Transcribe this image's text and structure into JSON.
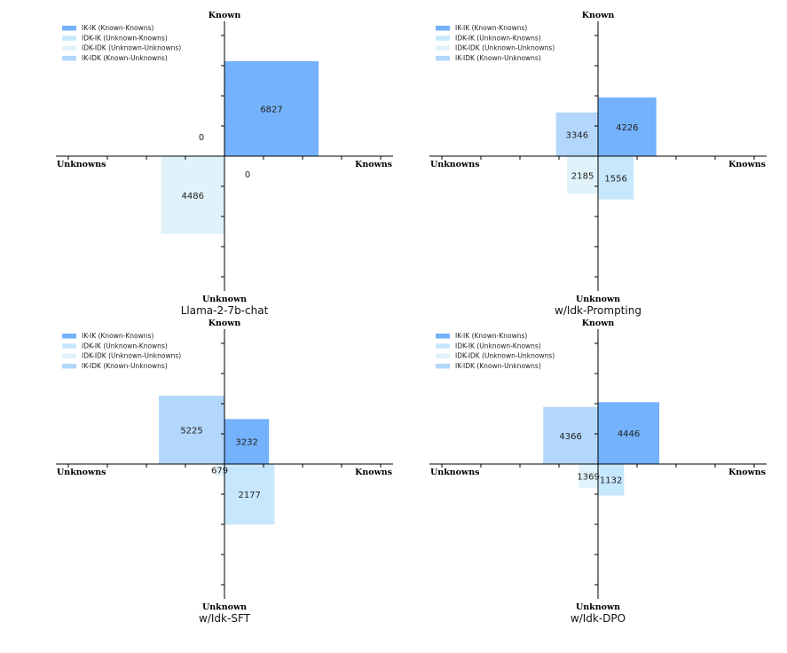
{
  "colors": {
    "ik_ik": "#74b2fb",
    "idk_ik": "#c7e7fc",
    "idk_idk": "#e1f3fa",
    "ik_idk": "#b2d6fc",
    "axis": "#000000"
  },
  "legend": [
    {
      "key": "ik_ik",
      "label": "IK-IK (Known-Knowns)"
    },
    {
      "key": "idk_ik",
      "label": "IDK-IK (Unknown-Knowns)"
    },
    {
      "key": "idk_idk",
      "label": "IDK-IDK (Unknown-Unknowns)"
    },
    {
      "key": "ik_idk",
      "label": "IK-IDK (Known-Unknowns)"
    }
  ],
  "axis_labels": {
    "top": "Known",
    "bottom": "Unknown",
    "left": "Unknowns",
    "right": "Knowns"
  },
  "chart_data": [
    {
      "type": "bar",
      "title": "Llama-2-7b-chat",
      "values": {
        "ik_ik": 6827,
        "ik_idk": 0,
        "idk_ik": 0,
        "idk_idk": 4486
      }
    },
    {
      "type": "bar",
      "title": "w/Idk-Prompting",
      "values": {
        "ik_ik": 4226,
        "ik_idk": 3346,
        "idk_ik": 1556,
        "idk_idk": 2185
      }
    },
    {
      "type": "bar",
      "title": "w/Idk-SFT",
      "values": {
        "ik_ik": 3232,
        "ik_idk": 5225,
        "idk_ik": 2177,
        "idk_idk": 679
      }
    },
    {
      "type": "bar",
      "title": "w/Idk-DPO",
      "values": {
        "ik_ik": 4446,
        "ik_idk": 4366,
        "idk_ik": 1132,
        "idk_idk": 1369
      }
    }
  ]
}
